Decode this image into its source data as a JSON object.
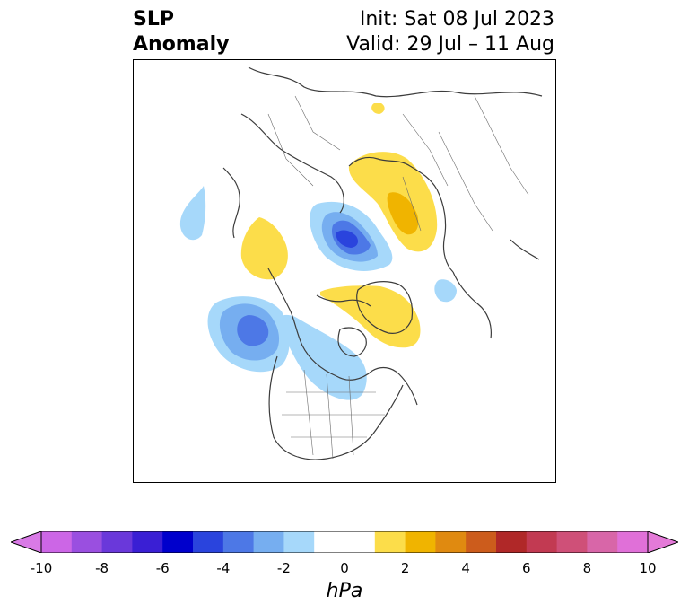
{
  "title": {
    "line1": "SLP",
    "line2": "Anomaly"
  },
  "subtitle": {
    "init": "Init: Sat 08 Jul 2023",
    "valid": "Valid: 29 Jul – 11 Aug"
  },
  "colorbar": {
    "unit": "hPa",
    "min": -10,
    "max": 10,
    "ticks": [
      "-10",
      "-8",
      "-6",
      "-4",
      "-2",
      "0",
      "2",
      "4",
      "6",
      "8",
      "10"
    ],
    "colors": [
      "#cc66e6",
      "#9a4fe0",
      "#6a38da",
      "#3a1fd4",
      "#0000cc",
      "#2a44dd",
      "#4d78e6",
      "#76aef0",
      "#a6d8fa",
      "#ffffff",
      "#ffffff",
      "#fcdd4a",
      "#f0b400",
      "#e08a10",
      "#cc5c1c",
      "#b02828",
      "#c23a52",
      "#cf5078",
      "#d866a8",
      "#e070d8"
    ],
    "extend_low_color": "#d97ae6",
    "extend_high_color": "#e47ad8"
  },
  "map": {
    "projection": "north-polar-stereographic",
    "features": [
      "coastlines",
      "country borders",
      "US and Canada state boundaries"
    ],
    "anomalies": [
      {
        "name": "negative-anomaly-arctic-ocean",
        "min_hpa": -6
      },
      {
        "name": "negative-anomaly-northeast-pacific",
        "min_hpa": -4
      },
      {
        "name": "negative-anomaly-central-canada",
        "min_hpa": -2
      },
      {
        "name": "negative-anomaly-north-atlantic",
        "min_hpa": -2
      },
      {
        "name": "negative-anomaly-east-siberia",
        "min_hpa": -2
      },
      {
        "name": "positive-anomaly-greenland",
        "max_hpa": 2
      },
      {
        "name": "positive-anomaly-scandinavia-barents",
        "max_hpa": 3
      },
      {
        "name": "positive-anomaly-siberia",
        "max_hpa": 2
      }
    ]
  }
}
